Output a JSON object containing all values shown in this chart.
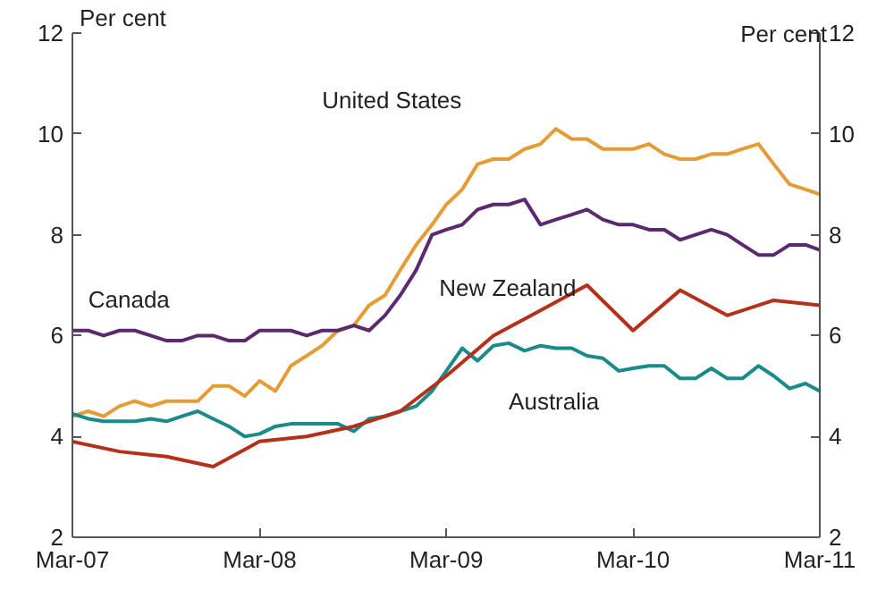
{
  "chart_data": {
    "type": "line",
    "ylabel": "Per cent",
    "y2label": "Per cent",
    "x": [
      "2007-03",
      "2007-04",
      "2007-05",
      "2007-06",
      "2007-07",
      "2007-08",
      "2007-09",
      "2007-10",
      "2007-11",
      "2007-12",
      "2008-01",
      "2008-02",
      "2008-03",
      "2008-04",
      "2008-05",
      "2008-06",
      "2008-07",
      "2008-08",
      "2008-09",
      "2008-10",
      "2008-11",
      "2008-12",
      "2009-01",
      "2009-02",
      "2009-03",
      "2009-04",
      "2009-05",
      "2009-06",
      "2009-07",
      "2009-08",
      "2009-09",
      "2009-10",
      "2009-11",
      "2009-12",
      "2010-01",
      "2010-02",
      "2010-03",
      "2010-04",
      "2010-05",
      "2010-06",
      "2010-07",
      "2010-08",
      "2010-09",
      "2010-10",
      "2010-11",
      "2010-12",
      "2011-01",
      "2011-02",
      "2011-03"
    ],
    "series": [
      {
        "name": "United States",
        "color": "#e59c35",
        "values": [
          4.4,
          4.5,
          4.4,
          4.6,
          4.7,
          4.6,
          4.7,
          4.7,
          4.7,
          5.0,
          5.0,
          4.8,
          5.1,
          4.9,
          5.4,
          5.6,
          5.8,
          6.1,
          6.2,
          6.6,
          6.8,
          7.3,
          7.8,
          8.2,
          8.6,
          8.9,
          9.4,
          9.5,
          9.5,
          9.7,
          9.8,
          10.1,
          9.9,
          9.9,
          9.7,
          9.7,
          9.7,
          9.8,
          9.6,
          9.5,
          9.5,
          9.6,
          9.6,
          9.7,
          9.8,
          9.4,
          9.0,
          8.9,
          8.8
        ]
      },
      {
        "name": "Canada",
        "color": "#5b2a6e",
        "values": [
          6.1,
          6.1,
          6.0,
          6.1,
          6.1,
          6.0,
          5.9,
          5.9,
          6.0,
          6.0,
          5.9,
          5.9,
          6.1,
          6.1,
          6.1,
          6.0,
          6.1,
          6.1,
          6.2,
          6.1,
          6.4,
          6.8,
          7.3,
          8.0,
          8.1,
          8.2,
          8.5,
          8.6,
          8.6,
          8.7,
          8.2,
          8.3,
          8.4,
          8.5,
          8.3,
          8.2,
          8.2,
          8.1,
          8.1,
          7.9,
          8.0,
          8.1,
          8.0,
          7.8,
          7.6,
          7.6,
          7.8,
          7.8,
          7.7
        ]
      },
      {
        "name": "Australia",
        "color": "#1a8a8a",
        "values": [
          4.45,
          4.35,
          4.3,
          4.3,
          4.3,
          4.35,
          4.3,
          4.4,
          4.5,
          4.35,
          4.2,
          4.0,
          4.05,
          4.2,
          4.25,
          4.25,
          4.25,
          4.25,
          4.1,
          4.35,
          4.4,
          4.5,
          4.6,
          4.9,
          5.3,
          5.75,
          5.5,
          5.8,
          5.85,
          5.7,
          5.8,
          5.75,
          5.75,
          5.6,
          5.55,
          5.3,
          5.35,
          5.4,
          5.4,
          5.15,
          5.15,
          5.35,
          5.15,
          5.15,
          5.4,
          5.2,
          4.95,
          5.05,
          4.9
        ]
      },
      {
        "name": "New Zealand",
        "color": "#b5301b",
        "x": [
          "2007-03",
          "2007-06",
          "2007-09",
          "2007-12",
          "2008-03",
          "2008-06",
          "2008-09",
          "2008-12",
          "2009-03",
          "2009-06",
          "2009-09",
          "2009-12",
          "2010-03",
          "2010-06",
          "2010-09",
          "2010-12",
          "2011-03"
        ],
        "values": [
          3.9,
          3.7,
          3.6,
          3.4,
          3.9,
          4.0,
          4.2,
          4.5,
          5.2,
          6.0,
          6.5,
          7.0,
          6.1,
          6.9,
          6.4,
          6.7,
          6.6
        ]
      }
    ],
    "xlim": [
      "2007-03",
      "2011-03"
    ],
    "xticks": [
      {
        "value": "2007-03",
        "label": "Mar-07"
      },
      {
        "value": "2008-03",
        "label": "Mar-08"
      },
      {
        "value": "2009-03",
        "label": "Mar-09"
      },
      {
        "value": "2010-03",
        "label": "Mar-10"
      },
      {
        "value": "2011-03",
        "label": "Mar-11"
      }
    ],
    "ylim": [
      2,
      12
    ],
    "yticks": [
      2,
      4,
      6,
      8,
      10,
      12
    ],
    "y2lim": [
      2,
      12
    ],
    "y2ticks": [
      2,
      4,
      6,
      8,
      10,
      12
    ],
    "grid": false,
    "marker": "none",
    "line_style": "solid"
  }
}
